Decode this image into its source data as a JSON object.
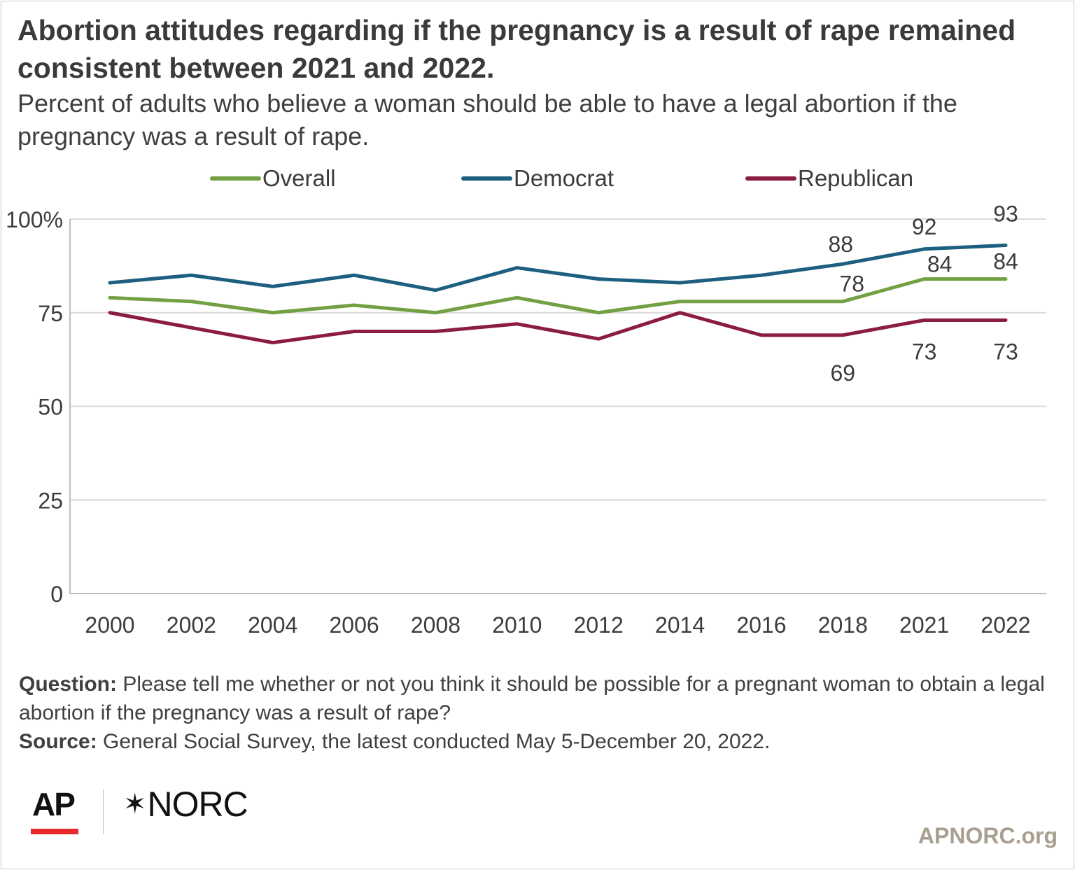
{
  "header": {
    "title": "Abortion attitudes regarding if the pregnancy is a result of rape remained consistent between 2021 and 2022.",
    "subtitle": "Percent of adults who believe a woman should be able to have a legal abortion if the pregnancy was a result of rape."
  },
  "chart_data": {
    "type": "line",
    "x": [
      "2000",
      "2002",
      "2004",
      "2006",
      "2008",
      "2010",
      "2012",
      "2014",
      "2016",
      "2018",
      "2021",
      "2022"
    ],
    "y_ticks": [
      "0",
      "25",
      "50",
      "75",
      "100%"
    ],
    "ylim": [
      0,
      100
    ],
    "grid": true,
    "legend_position": "top",
    "series": [
      {
        "name": "Overall",
        "color": "#72a043",
        "values": [
          79,
          78,
          75,
          77,
          75,
          79,
          75,
          78,
          78,
          78,
          84,
          84
        ],
        "labels": [
          null,
          null,
          null,
          null,
          null,
          null,
          null,
          null,
          null,
          "78",
          "84",
          "84"
        ]
      },
      {
        "name": "Democrat",
        "color": "#1c5f7f",
        "values": [
          83,
          85,
          82,
          85,
          81,
          87,
          84,
          83,
          85,
          88,
          92,
          93
        ],
        "labels": [
          null,
          null,
          null,
          null,
          null,
          null,
          null,
          null,
          null,
          "88",
          "92",
          "93"
        ]
      },
      {
        "name": "Republican",
        "color": "#8b1d3f",
        "values": [
          75,
          71,
          67,
          70,
          70,
          72,
          68,
          75,
          69,
          69,
          73,
          73
        ],
        "labels": [
          null,
          null,
          null,
          null,
          null,
          null,
          null,
          null,
          null,
          "69",
          "73",
          "73"
        ]
      }
    ]
  },
  "notes": {
    "question_label": "Question:",
    "question_text": " Please tell me whether or not you think it should be possible for a pregnant woman to obtain a legal abortion if the pregnancy was a result of rape?",
    "source_label": "Source:",
    "source_text": " General Social Survey, the latest conducted May 5-December 20, 2022."
  },
  "footer": {
    "ap_logo": "AP",
    "norc_logo": "NORC",
    "site": "APNORC.org"
  }
}
